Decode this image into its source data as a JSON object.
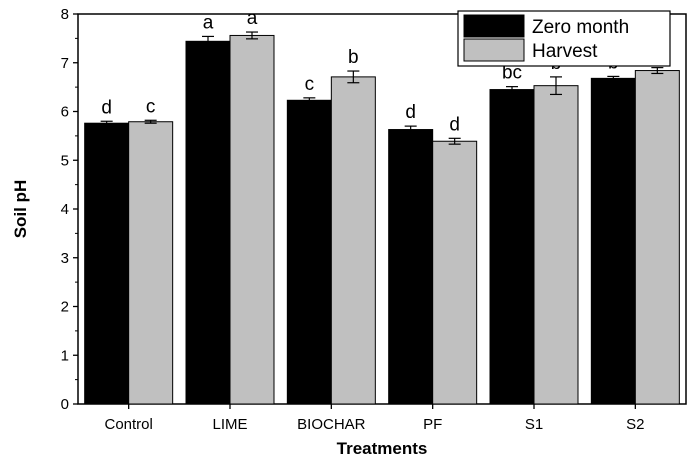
{
  "chart_data": {
    "type": "bar",
    "xlabel": "Treatments",
    "ylabel": "Soil pH",
    "ylim": [
      0,
      8
    ],
    "yticks": [
      0,
      1,
      2,
      3,
      4,
      5,
      6,
      7,
      8
    ],
    "categories": [
      "Control",
      "LIME",
      "BIOCHAR",
      "PF",
      "S1",
      "S2"
    ],
    "legend": {
      "position": "top-right"
    },
    "series": [
      {
        "name": "Zero month",
        "color": "#000000",
        "values": [
          5.76,
          7.44,
          6.23,
          5.63,
          6.45,
          6.68
        ],
        "errors": [
          0.04,
          0.1,
          0.05,
          0.07,
          0.06,
          0.04
        ],
        "letters": [
          "d",
          "a",
          "c",
          "d",
          "bc",
          "b"
        ]
      },
      {
        "name": "Harvest",
        "color": "#c0c0c0",
        "values": [
          5.79,
          7.56,
          6.71,
          5.39,
          6.53,
          6.84
        ],
        "errors": [
          0.03,
          0.07,
          0.12,
          0.06,
          0.18,
          0.06
        ],
        "letters": [
          "c",
          "a",
          "b",
          "d",
          "b",
          "b"
        ]
      }
    ]
  }
}
